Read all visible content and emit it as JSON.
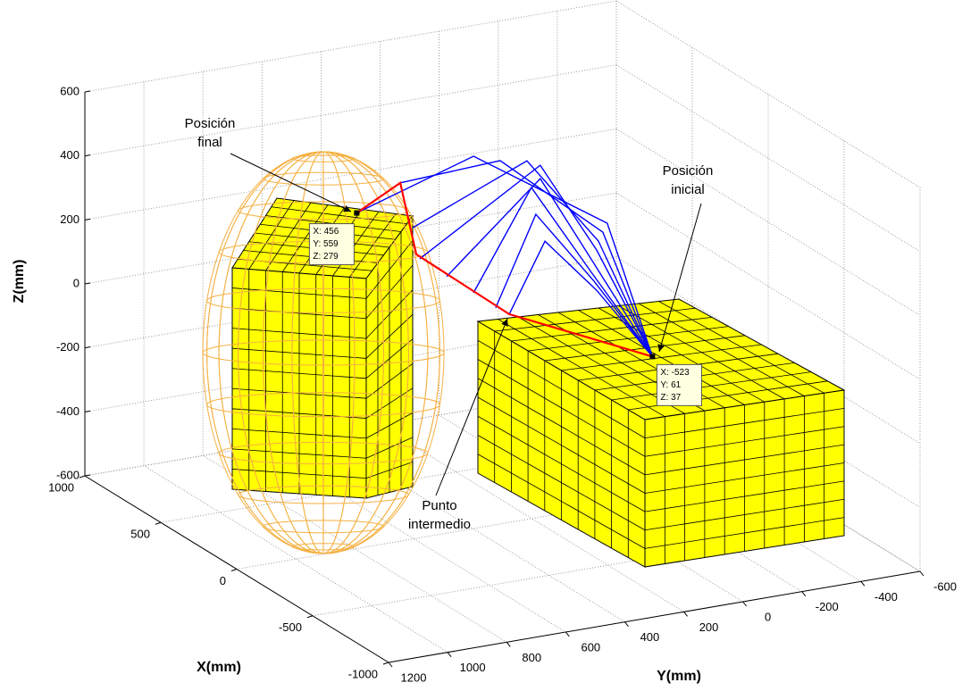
{
  "chart_data": {
    "type": "line3d",
    "xlabel": "X(mm)",
    "ylabel": "Y(mm)",
    "zlabel": "Z(mm)",
    "xlim": [
      -1000,
      1000
    ],
    "ylim": [
      -600,
      1200
    ],
    "zlim": [
      -600,
      600
    ],
    "xticks": [
      -1000,
      -500,
      0,
      500,
      1000
    ],
    "yticks": [
      -600,
      -400,
      -200,
      0,
      200,
      400,
      600,
      800,
      1000,
      1200
    ],
    "zticks": [
      -600,
      -400,
      -200,
      0,
      200,
      400,
      600
    ],
    "grid": true,
    "series": [
      {
        "color": "#0000ff",
        "x": [
          456,
          0,
          0,
          -523
        ],
        "y": [
          559,
          398,
          -55,
          61
        ],
        "z": [
          279,
          564,
          283,
          37
        ]
      },
      {
        "color": "#0000ff",
        "x": [
          0,
          0,
          0,
          -523
        ],
        "y": [
          646,
          308,
          -40,
          61
        ],
        "z": [
          520,
          536,
          257,
          37
        ]
      },
      {
        "color": "#0000ff",
        "x": [
          0,
          0,
          0,
          -523
        ],
        "y": [
          604,
          217,
          -25,
          61
        ],
        "z": [
          373,
          521,
          232,
          37
        ]
      },
      {
        "color": "#0000ff",
        "x": [
          0,
          0,
          0,
          -523
        ],
        "y": [
          580,
          172,
          -19,
          61
        ],
        "z": [
          272,
          500,
          205,
          37
        ]
      },
      {
        "color": "#0000ff",
        "x": [
          0,
          0,
          0,
          -523
        ],
        "y": [
          489,
          172,
          -10,
          61
        ],
        "z": [
          202,
          458,
          164,
          37
        ]
      },
      {
        "color": "#0000ff",
        "x": [
          0,
          0,
          0,
          -523
        ],
        "y": [
          398,
          202,
          -1,
          61
        ],
        "z": [
          137,
          435,
          138,
          37
        ]
      },
      {
        "color": "#0000ff",
        "x": [
          0,
          0,
          0,
          -523
        ],
        "y": [
          323,
          187,
          -10,
          61
        ],
        "z": [
          78,
          349,
          109,
          37
        ]
      },
      {
        "color": "#0000ff",
        "x": [
          0,
          0,
          0,
          -523
        ],
        "y": [
          277,
          156,
          -19,
          61
        ],
        "z": [
          51,
          260,
          79,
          37
        ]
      },
      {
        "color": "#ff0000",
        "x": [
          456,
          0,
          0,
          0,
          -523
        ],
        "y": [
          559,
          646,
          592,
          277,
          61
        ],
        "z": [
          279,
          520,
          288,
          51,
          37
        ]
      }
    ],
    "datatips": [
      {
        "x": 456,
        "y": 559,
        "z": 279,
        "lines": [
          "X: 456",
          "Y: 559",
          "Z: 279"
        ]
      },
      {
        "x": -523,
        "y": 61,
        "z": 37,
        "lines": [
          "X: -523",
          "Y: 61",
          "Z: 37"
        ]
      }
    ],
    "annotations": [
      {
        "lines": [
          "Posición",
          "final"
        ]
      },
      {
        "lines": [
          "Posición",
          "inicial"
        ]
      },
      {
        "lines": [
          "Punto",
          "intermedio"
        ]
      }
    ]
  }
}
